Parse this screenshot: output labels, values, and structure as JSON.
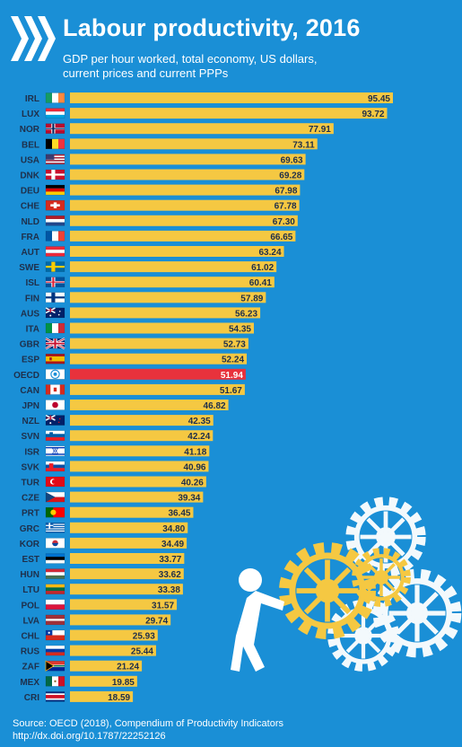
{
  "header": {
    "title": "Labour productivity, 2016",
    "subtitle_lines": [
      "GDP per hour worked, total economy, US dollars,",
      "current prices and current PPPs"
    ]
  },
  "footer": {
    "lines": [
      "Source: OECD (2018), Compendium of Productivity Indicators",
      "http://dx.doi.org/10.1787/22252126"
    ]
  },
  "icons": {
    "logo": "oecd-chevron-logo",
    "illustration": "figure-pushing-gears-illustration"
  },
  "colors": {
    "background": "#1a8fd6",
    "bar": "#f5c842",
    "highlight": "#e8323c",
    "text": "#ffffff",
    "label": "#1f2f4a"
  },
  "chart_data": {
    "type": "bar",
    "orientation": "horizontal",
    "title": "Labour productivity, 2016",
    "highlight": "OECD",
    "categories": [
      "IRL",
      "LUX",
      "NOR",
      "BEL",
      "USA",
      "DNK",
      "DEU",
      "CHE",
      "NLD",
      "FRA",
      "AUT",
      "SWE",
      "ISL",
      "FIN",
      "AUS",
      "ITA",
      "GBR",
      "ESP",
      "OECD",
      "CAN",
      "JPN",
      "NZL",
      "SVN",
      "ISR",
      "SVK",
      "TUR",
      "CZE",
      "PRT",
      "GRC",
      "KOR",
      "EST",
      "HUN",
      "LTU",
      "POL",
      "LVA",
      "CHL",
      "RUS",
      "ZAF",
      "MEX",
      "CRI"
    ],
    "values": [
      95.45,
      93.72,
      77.91,
      73.11,
      69.63,
      69.28,
      67.98,
      67.78,
      67.3,
      66.65,
      63.24,
      61.02,
      60.41,
      57.89,
      56.23,
      54.35,
      52.73,
      52.24,
      51.94,
      51.67,
      46.82,
      42.35,
      42.24,
      41.18,
      40.96,
      40.26,
      39.34,
      36.45,
      34.8,
      34.49,
      33.77,
      33.62,
      33.38,
      31.57,
      29.74,
      25.93,
      25.44,
      21.24,
      19.85,
      18.59
    ],
    "value_labels": [
      "95.45",
      "93.72",
      "77.91",
      "73.11",
      "69.63",
      "69.28",
      "67.98",
      "67.78",
      "67.30",
      "66.65",
      "63.24",
      "61.02",
      "60.41",
      "57.89",
      "56.23",
      "54.35",
      "52.73",
      "52.24",
      "51.94",
      "51.67",
      "46.82",
      "42.35",
      "42.24",
      "41.18",
      "40.96",
      "40.26",
      "39.34",
      "36.45",
      "34.80",
      "34.49",
      "33.77",
      "33.62",
      "33.38",
      "31.57",
      "29.74",
      "25.93",
      "25.44",
      "21.24",
      "19.85",
      "18.59"
    ],
    "xlim": [
      0,
      100
    ],
    "grid": false,
    "legend": "none"
  }
}
